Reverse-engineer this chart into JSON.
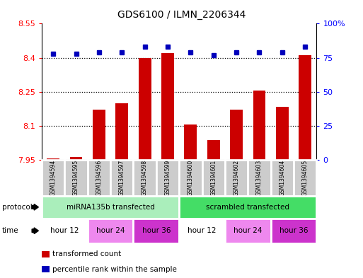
{
  "title": "GDS6100 / ILMN_2206344",
  "samples": [
    "GSM1394594",
    "GSM1394595",
    "GSM1394596",
    "GSM1394597",
    "GSM1394598",
    "GSM1394599",
    "GSM1394600",
    "GSM1394601",
    "GSM1394602",
    "GSM1394603",
    "GSM1394604",
    "GSM1394605"
  ],
  "bar_values": [
    7.955,
    7.963,
    8.17,
    8.2,
    8.4,
    8.42,
    8.105,
    8.038,
    8.17,
    8.255,
    8.185,
    8.41
  ],
  "dot_values": [
    78,
    78,
    79,
    79,
    83,
    83,
    79,
    77,
    79,
    79,
    79,
    83
  ],
  "bar_bottom": 7.95,
  "ylim_left": [
    7.95,
    8.55
  ],
  "ylim_right": [
    0,
    100
  ],
  "yticks_left": [
    7.95,
    8.1,
    8.25,
    8.4,
    8.55
  ],
  "ytick_labels_left": [
    "7.95",
    "8.1",
    "8.25",
    "8.4",
    "8.55"
  ],
  "yticks_right": [
    0,
    25,
    50,
    75,
    100
  ],
  "ytick_labels_right": [
    "0",
    "25",
    "50",
    "75",
    "100%"
  ],
  "hlines": [
    8.1,
    8.25,
    8.4
  ],
  "bar_color": "#cc0000",
  "dot_color": "#0000bb",
  "protocol_groups": [
    {
      "label": "miRNA135b transfected",
      "start": 0,
      "end": 6,
      "color": "#aaeebb"
    },
    {
      "label": "scrambled transfected",
      "start": 6,
      "end": 12,
      "color": "#44dd66"
    }
  ],
  "time_groups": [
    {
      "label": "hour 12",
      "start": 0,
      "end": 2,
      "color": "#ffffff"
    },
    {
      "label": "hour 24",
      "start": 2,
      "end": 4,
      "color": "#ee88ee"
    },
    {
      "label": "hour 36",
      "start": 4,
      "end": 6,
      "color": "#cc33cc"
    },
    {
      "label": "hour 12",
      "start": 6,
      "end": 8,
      "color": "#ffffff"
    },
    {
      "label": "hour 24",
      "start": 8,
      "end": 10,
      "color": "#ee88ee"
    },
    {
      "label": "hour 36",
      "start": 10,
      "end": 12,
      "color": "#cc33cc"
    }
  ],
  "legend_items": [
    {
      "label": "transformed count",
      "color": "#cc0000"
    },
    {
      "label": "percentile rank within the sample",
      "color": "#0000bb"
    }
  ],
  "protocol_label": "protocol",
  "time_label": "time",
  "bar_width": 0.55,
  "sample_box_color": "#cccccc",
  "fig_width": 5.13,
  "fig_height": 3.93,
  "dpi": 100
}
